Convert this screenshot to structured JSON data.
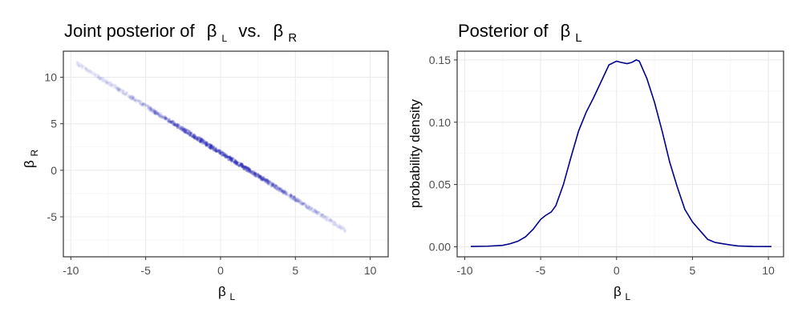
{
  "chart_data": [
    {
      "type": "scatter",
      "title": "Joint posterior of",
      "title_sym1": "β",
      "title_sub1": "L",
      "title_mid": "vs.",
      "title_sym2": "β",
      "title_sub2": "R",
      "xlabel_sym": "β",
      "xlabel_sub": "L",
      "ylabel_sym": "β",
      "ylabel_sub": "R",
      "xlim": [
        -10.5,
        11.2
      ],
      "ylim": [
        -9.3,
        12.8
      ],
      "x_ticks": [
        -10,
        -5,
        0,
        5,
        10
      ],
      "y_ticks": [
        -5,
        0,
        5,
        10
      ],
      "x_tick_labels": [
        "-10",
        "-5",
        "0",
        "5",
        "10"
      ],
      "y_tick_labels": [
        "-5",
        "0",
        "5",
        "10"
      ],
      "grid": true,
      "relationship": {
        "intercept": 1.9,
        "slope": -1.0
      },
      "x_range": [
        -9.6,
        8.4
      ],
      "point_color": "#2a2ab5",
      "points": [
        {
          "x": -9.5,
          "y": 11.4
        },
        {
          "x": -8.0,
          "y": 9.9
        },
        {
          "x": -7.2,
          "y": 9.1
        },
        {
          "x": -6.5,
          "y": 8.4
        },
        {
          "x": -5.8,
          "y": 7.7
        },
        {
          "x": -5.2,
          "y": 7.1
        },
        {
          "x": -4.7,
          "y": 6.6
        },
        {
          "x": -4.2,
          "y": 6.1
        },
        {
          "x": -3.7,
          "y": 5.6
        },
        {
          "x": -3.3,
          "y": 5.2
        },
        {
          "x": -2.9,
          "y": 4.8
        },
        {
          "x": -2.5,
          "y": 4.4
        },
        {
          "x": -2.1,
          "y": 4.0
        },
        {
          "x": -1.7,
          "y": 3.6
        },
        {
          "x": -1.3,
          "y": 3.2
        },
        {
          "x": -0.9,
          "y": 2.8
        },
        {
          "x": -0.5,
          "y": 2.4
        },
        {
          "x": -0.1,
          "y": 2.0
        },
        {
          "x": 0.3,
          "y": 1.6
        },
        {
          "x": 0.7,
          "y": 1.2
        },
        {
          "x": 1.1,
          "y": 0.8
        },
        {
          "x": 1.5,
          "y": 0.4
        },
        {
          "x": 1.9,
          "y": 0.0
        },
        {
          "x": 2.3,
          "y": -0.4
        },
        {
          "x": 2.7,
          "y": -0.8
        },
        {
          "x": 3.1,
          "y": -1.2
        },
        {
          "x": 3.5,
          "y": -1.6
        },
        {
          "x": 3.9,
          "y": -2.0
        },
        {
          "x": 4.3,
          "y": -2.4
        },
        {
          "x": 4.7,
          "y": -2.8
        },
        {
          "x": 5.2,
          "y": -3.3
        },
        {
          "x": 5.7,
          "y": -3.8
        },
        {
          "x": 6.3,
          "y": -4.4
        },
        {
          "x": 6.9,
          "y": -5.0
        },
        {
          "x": 7.6,
          "y": -5.7
        },
        {
          "x": 8.2,
          "y": -6.3
        }
      ]
    },
    {
      "type": "line",
      "title": "Posterior of",
      "title_sym1": "β",
      "title_sub1": "L",
      "xlabel_sym": "β",
      "xlabel_sub": "L",
      "ylabel": "probability density",
      "xlim": [
        -10.5,
        11.0
      ],
      "ylim": [
        -0.008,
        0.157
      ],
      "x_ticks": [
        -10,
        -5,
        0,
        5,
        10
      ],
      "y_ticks": [
        0.0,
        0.05,
        0.1,
        0.15
      ],
      "x_tick_labels": [
        "-10",
        "-5",
        "0",
        "5",
        "10"
      ],
      "y_tick_labels": [
        "0.00",
        "0.05",
        "0.10",
        "0.15"
      ],
      "grid": true,
      "line_color": "#00008b",
      "series": [
        {
          "x": [
            -9.6,
            -8.5,
            -7.5,
            -7.0,
            -6.5,
            -6.0,
            -5.5,
            -5.0,
            -4.7,
            -4.3,
            -4.0,
            -3.5,
            -3.0,
            -2.5,
            -2.0,
            -1.5,
            -1.0,
            -0.5,
            0.0,
            0.3,
            0.7,
            1.0,
            1.3,
            1.5,
            2.0,
            2.5,
            3.0,
            3.5,
            4.0,
            4.5,
            5.0,
            5.5,
            6.0,
            6.5,
            7.0,
            7.5,
            8.0,
            9.0,
            10.2
          ],
          "y": [
            0.0003,
            0.0005,
            0.0012,
            0.0025,
            0.0045,
            0.008,
            0.014,
            0.022,
            0.025,
            0.028,
            0.033,
            0.05,
            0.072,
            0.093,
            0.108,
            0.12,
            0.133,
            0.146,
            0.149,
            0.148,
            0.147,
            0.148,
            0.15,
            0.149,
            0.135,
            0.116,
            0.093,
            0.068,
            0.048,
            0.03,
            0.02,
            0.013,
            0.006,
            0.0035,
            0.0025,
            0.0015,
            0.0007,
            0.0003,
            0.0002
          ]
        }
      ]
    }
  ]
}
